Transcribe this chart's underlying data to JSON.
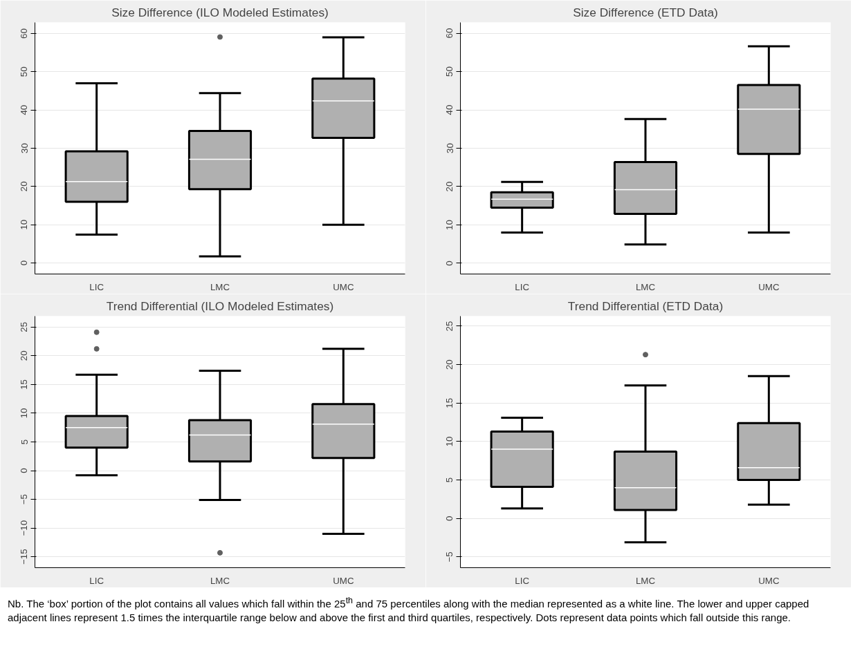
{
  "chart_data": [
    {
      "type": "box",
      "title": "Size Difference (ILO Modeled Estimates)",
      "categories": [
        "LIC",
        "LMC",
        "UMC"
      ],
      "ylim": [
        -2.9,
        62.9
      ],
      "yticks": [
        0,
        10,
        20,
        30,
        40,
        50,
        60
      ],
      "grid": "y",
      "series": [
        {
          "color": "#b0b0b0",
          "boxes": [
            {
              "low": 7.4,
              "q1": 16.0,
              "median": 21.3,
              "q3": 29.2,
              "high": 47
            },
            {
              "low": 1.7,
              "q1": 19.3,
              "median": 27.1,
              "q3": 34.5,
              "high": 44.4,
              "outliers": [
                59.1
              ]
            },
            {
              "low": 10,
              "q1": 32.7,
              "median": 42.4,
              "q3": 48.2,
              "high": 59
            }
          ]
        }
      ]
    },
    {
      "type": "box",
      "title": "Size Difference (ETD Data)",
      "categories": [
        "LIC",
        "LMC",
        "UMC"
      ],
      "ylim": [
        -2.8,
        62.8
      ],
      "yticks": [
        0,
        10,
        20,
        30,
        40,
        50,
        60
      ],
      "grid": "y",
      "series": [
        {
          "color": "#b0b0b0",
          "boxes": [
            {
              "low": 8,
              "q1": 14.5,
              "median": 16.7,
              "q3": 18.5,
              "high": 21.2
            },
            {
              "low": 4.9,
              "q1": 12.9,
              "median": 19.2,
              "q3": 26.4,
              "high": 37.6
            },
            {
              "low": 8,
              "q1": 28.5,
              "median": 40.2,
              "q3": 46.5,
              "high": 56.6
            }
          ]
        }
      ]
    },
    {
      "type": "box",
      "title": "Trend Differential (ILO Modeled Estimates)",
      "categories": [
        "LIC",
        "LMC",
        "UMC"
      ],
      "ylim": [
        -16.9,
        26.9
      ],
      "yticks": [
        -15,
        -10,
        -5,
        0,
        5,
        10,
        15,
        20,
        25
      ],
      "grid": "y",
      "series": [
        {
          "color": "#b0b0b0",
          "boxes": [
            {
              "low": -0.8,
              "q1": 4.0,
              "median": 7.5,
              "q3": 9.5,
              "high": 16.7,
              "outliers": [
                21.2,
                24.1
              ]
            },
            {
              "low": -5.1,
              "q1": 1.6,
              "median": 6.2,
              "q3": 8.8,
              "high": 17.4,
              "outliers": [
                -14.3
              ]
            },
            {
              "low": -11.0,
              "q1": 2.2,
              "median": 8.1,
              "q3": 11.6,
              "high": 21.2
            }
          ]
        }
      ]
    },
    {
      "type": "box",
      "title": "Trend Differential (ETD Data)",
      "categories": [
        "LIC",
        "LMC",
        "UMC"
      ],
      "ylim": [
        -6.4,
        26.3
      ],
      "yticks": [
        -5,
        0,
        5,
        10,
        15,
        20,
        25
      ],
      "grid": "y",
      "series": [
        {
          "color": "#b0b0b0",
          "boxes": [
            {
              "low": 1.3,
              "q1": 4.1,
              "median": 9.0,
              "q3": 11.3,
              "high": 13.1
            },
            {
              "low": -3.1,
              "q1": 1.1,
              "median": 4.0,
              "q3": 8.7,
              "high": 17.3,
              "outliers": [
                21.3
              ]
            },
            {
              "low": 1.8,
              "q1": 5.0,
              "median": 6.6,
              "q3": 12.4,
              "high": 18.5
            }
          ]
        }
      ]
    },
    {
      "type": "other",
      "annotations": [
        "Nb. The ‘box’ portion of the plot contains all values which fall within the 25$^{th}$ and 75 percentiles along with the median represented as a white line. The lower and upper capped adjacent lines represent 1.5 times the interquartile range below and above the first and third quartiles, respectively. Dots represent data points which fall outside this range."
      ]
    }
  ]
}
